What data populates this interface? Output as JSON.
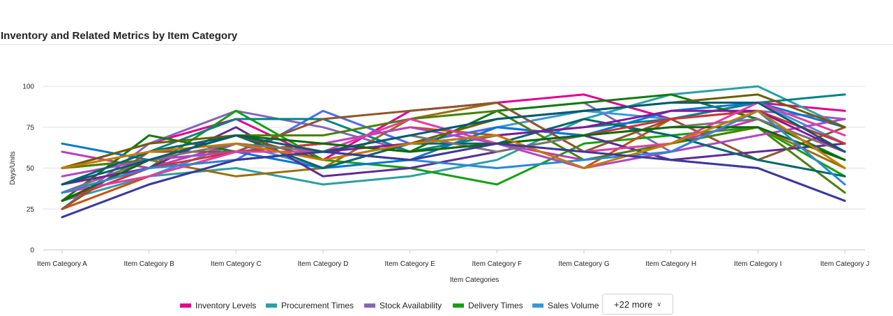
{
  "title": "Inventory and Related Metrics by Item Category",
  "more_button": {
    "label": "+22 more",
    "icon": "chevron-down-icon"
  },
  "chart_data": {
    "type": "line",
    "xlabel": "Item Categories",
    "ylabel": "Days/Units",
    "ylim": [
      0,
      100
    ],
    "yticks": [
      0,
      25,
      50,
      75,
      100
    ],
    "grid": true,
    "legend_position": "bottom",
    "categories": [
      "Item Category A",
      "Item Category B",
      "Item Category C",
      "Item Category D",
      "Item Category E",
      "Item Category F",
      "Item Category G",
      "Item Category H",
      "Item Category I",
      "Item Category J"
    ],
    "series": [
      {
        "name": "Inventory Levels",
        "color": "#e3008c",
        "values": [
          50,
          65,
          80,
          55,
          85,
          90,
          95,
          80,
          90,
          85
        ]
      },
      {
        "name": "Procurement Times",
        "color": "#2aa0a4",
        "values": [
          30,
          45,
          50,
          40,
          45,
          55,
          80,
          95,
          100,
          75
        ]
      },
      {
        "name": "Stock Availability",
        "color": "#8764b8",
        "values": [
          25,
          65,
          85,
          75,
          60,
          85,
          90,
          60,
          85,
          80
        ]
      },
      {
        "name": "Delivery Times",
        "color": "#13a10e",
        "values": [
          30,
          50,
          85,
          55,
          50,
          40,
          65,
          70,
          75,
          45
        ]
      },
      {
        "name": "Sales Volume",
        "color": "#3a96dd",
        "values": [
          35,
          45,
          65,
          50,
          65,
          75,
          85,
          80,
          90,
          65
        ]
      },
      {
        "color": "#ca5010",
        "values": [
          25,
          45,
          60,
          65,
          75,
          70,
          50,
          80,
          85,
          65
        ]
      },
      {
        "color": "#4f6bed",
        "values": [
          20,
          40,
          55,
          85,
          65,
          75,
          70,
          55,
          50,
          30
        ]
      },
      {
        "color": "#986f0b",
        "values": [
          50,
          55,
          45,
          50,
          80,
          90,
          60,
          65,
          75,
          50
        ]
      },
      {
        "color": "#038387",
        "values": [
          40,
          60,
          80,
          80,
          60,
          70,
          75,
          80,
          90,
          95
        ]
      },
      {
        "color": "#c239b3",
        "values": [
          60,
          50,
          65,
          60,
          55,
          65,
          55,
          65,
          80,
          60
        ]
      },
      {
        "color": "#107c10",
        "values": [
          30,
          70,
          60,
          65,
          60,
          85,
          90,
          95,
          80,
          55
        ]
      },
      {
        "color": "#0078d4",
        "values": [
          65,
          55,
          60,
          50,
          55,
          75,
          70,
          85,
          90,
          75
        ]
      },
      {
        "color": "#8e562e",
        "values": [
          25,
          60,
          60,
          80,
          85,
          90,
          60,
          80,
          55,
          75
        ]
      },
      {
        "color": "#5c2e91",
        "values": [
          35,
          50,
          75,
          45,
          50,
          60,
          70,
          55,
          60,
          65
        ]
      },
      {
        "color": "#498205",
        "values": [
          50,
          55,
          70,
          70,
          80,
          85,
          55,
          65,
          75,
          35
        ]
      },
      {
        "color": "#b146c2",
        "values": [
          45,
          55,
          60,
          65,
          75,
          65,
          50,
          60,
          70,
          80
        ]
      },
      {
        "color": "#00666b",
        "values": [
          40,
          60,
          70,
          50,
          65,
          65,
          80,
          70,
          55,
          45
        ]
      },
      {
        "color": "#6b5f00",
        "values": [
          50,
          65,
          70,
          55,
          65,
          80,
          85,
          90,
          95,
          75
        ]
      },
      {
        "color": "#d13438",
        "values": [
          30,
          50,
          60,
          65,
          60,
          65,
          70,
          80,
          85,
          65
        ]
      },
      {
        "color": "#7a7574",
        "values": [
          35,
          55,
          65,
          60,
          70,
          60,
          70,
          75,
          80,
          60
        ]
      },
      {
        "color": "#881798",
        "values": [
          40,
          50,
          55,
          60,
          65,
          70,
          75,
          85,
          85,
          60
        ]
      },
      {
        "color": "#e43ba6",
        "values": [
          35,
          45,
          60,
          60,
          80,
          65,
          60,
          65,
          90,
          70
        ]
      },
      {
        "color": "#0b6a0b",
        "values": [
          30,
          55,
          70,
          65,
          60,
          65,
          70,
          75,
          75,
          55
        ]
      },
      {
        "color": "#2b88d8",
        "values": [
          35,
          50,
          55,
          60,
          55,
          50,
          55,
          60,
          85,
          40
        ]
      },
      {
        "color": "#c57b00",
        "values": [
          50,
          60,
          65,
          55,
          65,
          70,
          50,
          65,
          85,
          50
        ]
      },
      {
        "color": "#3b3a99",
        "values": [
          20,
          40,
          55,
          60,
          55,
          65,
          60,
          55,
          50,
          30
        ]
      },
      {
        "color": "#005b70",
        "values": [
          40,
          55,
          70,
          60,
          70,
          80,
          85,
          90,
          90,
          60
        ]
      }
    ]
  }
}
